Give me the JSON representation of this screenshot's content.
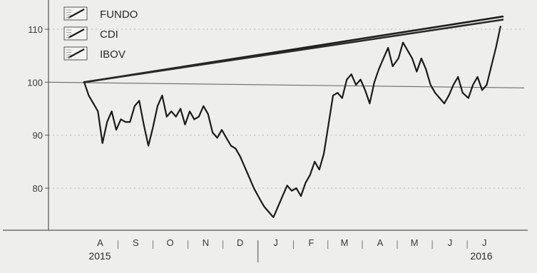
{
  "chart_data": {
    "type": "line",
    "title": "",
    "xlabel": "",
    "ylabel": "",
    "ylim": [
      72,
      114
    ],
    "yticks": [
      80,
      90,
      100,
      110
    ],
    "grid": true,
    "legend_position": "top-left",
    "months": [
      "A",
      "S",
      "O",
      "N",
      "D",
      "J",
      "F",
      "M",
      "A",
      "M",
      "J",
      "J"
    ],
    "years": [
      "2015",
      "2016"
    ],
    "series": [
      {
        "name": "FUNDO",
        "color": "#1e1e1e",
        "x": [
          "2015-08-01",
          "2016-07-31"
        ],
        "y": [
          100.0,
          112.4
        ]
      },
      {
        "name": "CDI",
        "color": "#2a2a2a",
        "x": [
          "2015-08-01",
          "2016-07-31"
        ],
        "y": [
          100.0,
          111.8
        ]
      },
      {
        "name": "IBOV",
        "color": "#1a1a1a",
        "x": [
          "2015-08-01",
          "2015-08-05",
          "2015-08-09",
          "2015-08-13",
          "2015-08-17",
          "2015-08-21",
          "2015-08-25",
          "2015-08-29",
          "2015-09-02",
          "2015-09-06",
          "2015-09-10",
          "2015-09-14",
          "2015-09-18",
          "2015-09-22",
          "2015-09-26",
          "2015-09-30",
          "2015-10-04",
          "2015-10-08",
          "2015-10-12",
          "2015-10-16",
          "2015-10-20",
          "2015-10-24",
          "2015-10-28",
          "2015-11-01",
          "2015-11-05",
          "2015-11-09",
          "2015-11-13",
          "2015-11-17",
          "2015-11-21",
          "2015-11-25",
          "2015-11-29",
          "2015-12-03",
          "2015-12-07",
          "2015-12-11",
          "2015-12-15",
          "2015-12-19",
          "2015-12-23",
          "2015-12-27",
          "2016-01-01",
          "2016-01-05",
          "2016-01-09",
          "2016-01-13",
          "2016-01-17",
          "2016-01-21",
          "2016-01-25",
          "2016-01-29",
          "2016-02-02",
          "2016-02-06",
          "2016-02-10",
          "2016-02-14",
          "2016-02-18",
          "2016-02-22",
          "2016-02-26",
          "2016-03-01",
          "2016-03-05",
          "2016-03-09",
          "2016-03-13",
          "2016-03-17",
          "2016-03-21",
          "2016-03-25",
          "2016-03-29",
          "2016-04-02",
          "2016-04-06",
          "2016-04-10",
          "2016-04-14",
          "2016-04-18",
          "2016-04-22",
          "2016-04-26",
          "2016-05-01",
          "2016-05-05",
          "2016-05-09",
          "2016-05-13",
          "2016-05-17",
          "2016-05-21",
          "2016-05-25",
          "2016-05-29",
          "2016-06-02",
          "2016-06-06",
          "2016-06-10",
          "2016-06-14",
          "2016-06-18",
          "2016-06-22",
          "2016-06-26",
          "2016-07-01",
          "2016-07-05",
          "2016-07-09",
          "2016-07-13",
          "2016-07-17",
          "2016-07-21",
          "2016-07-25",
          "2016-07-29"
        ],
        "y": [
          100.0,
          97.5,
          96.0,
          94.5,
          88.5,
          92.5,
          94.5,
          91.0,
          93.0,
          92.5,
          92.5,
          95.5,
          96.5,
          92.0,
          88.0,
          91.5,
          95.5,
          97.5,
          93.5,
          94.5,
          93.5,
          95.0,
          92.0,
          94.5,
          93.0,
          93.5,
          95.5,
          94.0,
          90.5,
          89.5,
          91.0,
          89.5,
          88.0,
          87.5,
          86.0,
          84.0,
          82.0,
          80.0,
          78.0,
          76.5,
          75.5,
          74.5,
          76.5,
          78.5,
          80.5,
          79.5,
          80.0,
          78.5,
          81.0,
          82.5,
          85.0,
          83.5,
          86.5,
          92.0,
          97.5,
          98.0,
          97.0,
          100.5,
          101.5,
          99.5,
          100.5,
          98.5,
          96.0,
          100.0,
          102.5,
          104.5,
          106.5,
          103.0,
          104.5,
          107.5,
          106.0,
          104.5,
          102.0,
          104.5,
          102.5,
          99.5,
          98.0,
          97.0,
          96.0,
          97.5,
          99.5,
          101.0,
          98.0,
          97.0,
          99.5,
          101.0,
          98.5,
          99.5,
          103.0,
          106.5,
          110.5
        ]
      }
    ],
    "reference_lines": [
      {
        "y": 100
      }
    ]
  }
}
